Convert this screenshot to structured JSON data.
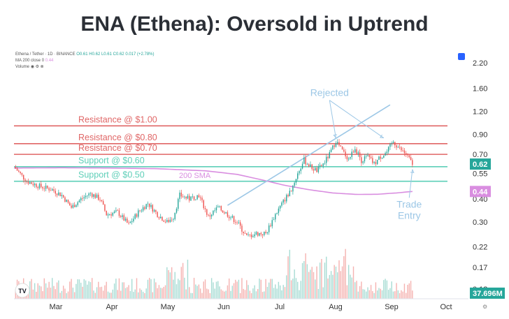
{
  "page": {
    "title": "ENA (Ethena): Oversold in Uptrend"
  },
  "header": {
    "symbol": "Ethena / Tether · 1D · BINANCE",
    "ohlc": "O0.61 H0.62 L0.61 C0.62 0.017 (+2.78%)",
    "ma_label": "MA 200 close 0",
    "ma_value": "0.44",
    "volume_label": "Volume"
  },
  "colors": {
    "up": "#26a69a",
    "down": "#ef5350",
    "resistance": "#e06666",
    "support": "#5ecfb8",
    "sma": "#d98ee0",
    "annotation": "#9cc7e6",
    "volume_up": "#a8dcd4",
    "volume_down": "#f5b3b1"
  },
  "icons": {
    "logo": "tradingview-logo-icon",
    "settings": "gear-icon",
    "blue_square": "square-icon"
  },
  "chart_data": {
    "type": "candlestick",
    "title": "ENA (Ethena): Oversold in Uptrend",
    "y_scale": "log",
    "x_ticks": [
      "Mar",
      "Apr",
      "May",
      "Jun",
      "Jul",
      "Aug",
      "Sep",
      "Oct"
    ],
    "y_ticks": [
      "2.20",
      "1.60",
      "1.20",
      "0.90",
      "0.70",
      "0.55",
      "0.40",
      "0.30",
      "0.22",
      "0.17",
      "0.13"
    ],
    "ylim": [
      0.115,
      2.4
    ],
    "price_badges": [
      {
        "label": "0.62",
        "value": 0.62,
        "color": "#26a69a"
      },
      {
        "label": "0.44",
        "value": 0.44,
        "color": "#d98ee0"
      },
      {
        "label": "37.696M",
        "color": "#26a69a"
      }
    ],
    "horizontal_levels": [
      {
        "label": "Resistance @ $1.00",
        "value": 1.0,
        "kind": "resistance"
      },
      {
        "label": "Resistance @ $0.80",
        "value": 0.8,
        "kind": "resistance"
      },
      {
        "label": "Resistance @ $0.70",
        "value": 0.7,
        "kind": "resistance"
      },
      {
        "label": "Support @ $0.60",
        "value": 0.6,
        "kind": "support"
      },
      {
        "label": "Support @ $0.50",
        "value": 0.5,
        "kind": "support"
      }
    ],
    "sma_label": "200 SMA",
    "sma": [
      {
        "t": 0,
        "v": 0.59
      },
      {
        "t": 30,
        "v": 0.592
      },
      {
        "t": 60,
        "v": 0.59
      },
      {
        "t": 90,
        "v": 0.585
      },
      {
        "t": 120,
        "v": 0.57
      },
      {
        "t": 140,
        "v": 0.545
      },
      {
        "t": 155,
        "v": 0.51
      },
      {
        "t": 170,
        "v": 0.475
      },
      {
        "t": 185,
        "v": 0.45
      },
      {
        "t": 200,
        "v": 0.432
      },
      {
        "t": 215,
        "v": 0.424
      },
      {
        "t": 228,
        "v": 0.425
      },
      {
        "t": 240,
        "v": 0.432
      },
      {
        "t": 250,
        "v": 0.44
      }
    ],
    "closes": [
      {
        "t": 0,
        "v": 0.6
      },
      {
        "t": 8,
        "v": 0.5
      },
      {
        "t": 16,
        "v": 0.47
      },
      {
        "t": 24,
        "v": 0.45
      },
      {
        "t": 30,
        "v": 0.42
      },
      {
        "t": 36,
        "v": 0.36
      },
      {
        "t": 42,
        "v": 0.4
      },
      {
        "t": 48,
        "v": 0.43
      },
      {
        "t": 54,
        "v": 0.4
      },
      {
        "t": 58,
        "v": 0.33
      },
      {
        "t": 65,
        "v": 0.34
      },
      {
        "t": 72,
        "v": 0.29
      },
      {
        "t": 78,
        "v": 0.34
      },
      {
        "t": 84,
        "v": 0.38
      },
      {
        "t": 90,
        "v": 0.33
      },
      {
        "t": 96,
        "v": 0.3
      },
      {
        "t": 100,
        "v": 0.32
      },
      {
        "t": 104,
        "v": 0.42
      },
      {
        "t": 110,
        "v": 0.4
      },
      {
        "t": 116,
        "v": 0.42
      },
      {
        "t": 122,
        "v": 0.32
      },
      {
        "t": 128,
        "v": 0.36
      },
      {
        "t": 134,
        "v": 0.33
      },
      {
        "t": 140,
        "v": 0.3
      },
      {
        "t": 146,
        "v": 0.25
      },
      {
        "t": 152,
        "v": 0.26
      },
      {
        "t": 158,
        "v": 0.26
      },
      {
        "t": 164,
        "v": 0.33
      },
      {
        "t": 170,
        "v": 0.4
      },
      {
        "t": 174,
        "v": 0.45
      },
      {
        "t": 178,
        "v": 0.55
      },
      {
        "t": 182,
        "v": 0.65
      },
      {
        "t": 186,
        "v": 0.6
      },
      {
        "t": 190,
        "v": 0.57
      },
      {
        "t": 194,
        "v": 0.62
      },
      {
        "t": 198,
        "v": 0.7
      },
      {
        "t": 202,
        "v": 0.83
      },
      {
        "t": 206,
        "v": 0.73
      },
      {
        "t": 210,
        "v": 0.66
      },
      {
        "t": 214,
        "v": 0.76
      },
      {
        "t": 218,
        "v": 0.65
      },
      {
        "t": 222,
        "v": 0.68
      },
      {
        "t": 226,
        "v": 0.62
      },
      {
        "t": 230,
        "v": 0.68
      },
      {
        "t": 234,
        "v": 0.72
      },
      {
        "t": 238,
        "v": 0.82
      },
      {
        "t": 242,
        "v": 0.75
      },
      {
        "t": 246,
        "v": 0.7
      },
      {
        "t": 250,
        "v": 0.62
      }
    ],
    "trend_line": {
      "from": {
        "t": 134,
        "v": 0.37
      },
      "to": {
        "t": 236,
        "v": 1.3
      }
    },
    "annotations": [
      {
        "label": "Rejected",
        "anchor": {
          "t": 198,
          "v": 1.45
        },
        "arrows_to": [
          {
            "t": 202,
            "v": 0.86
          },
          {
            "t": 232,
            "v": 0.86
          }
        ]
      },
      {
        "label": "Trade",
        "label2": "Entry",
        "anchor": {
          "t": 248,
          "v": 0.36
        },
        "arrow_to": {
          "t": 250,
          "v": 0.58
        }
      }
    ]
  }
}
